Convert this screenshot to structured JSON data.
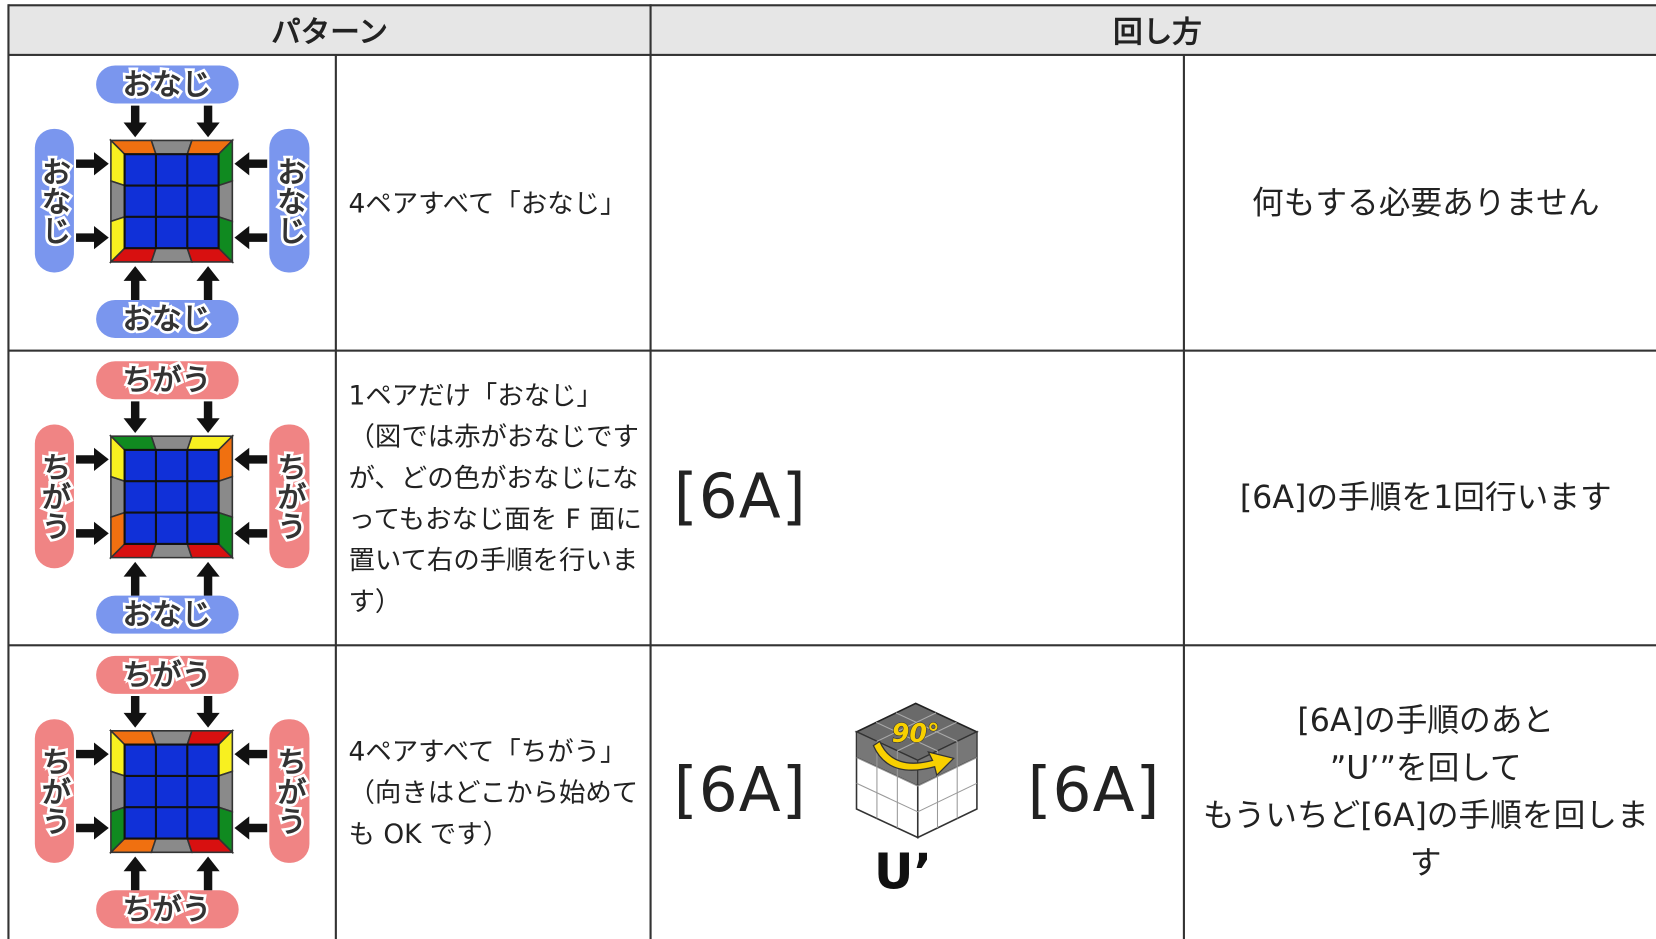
{
  "table": {
    "headers": [
      "パターン",
      "回し方"
    ],
    "rows": [
      {
        "pattern": {
          "top": "おなじ",
          "left": "おなじ",
          "right": "おなじ",
          "bottom": "おなじ"
        },
        "description": [
          "4ペアすべて「おなじ」"
        ],
        "instruction": [
          "何もする必要ありません"
        ]
      },
      {
        "pattern": {
          "top": "ちがう",
          "left": "ちがう",
          "right": "ちがう",
          "bottom": "おなじ"
        },
        "description": [
          "1ペアだけ「おなじ」",
          "（図では赤がおなじですが、どの色がおなじになってもおなじ面を F 面に置いて右の手順を行います）"
        ],
        "moves": [
          {
            "label": "[6A]"
          }
        ],
        "instruction": [
          "[6A]の手順を1回行います"
        ]
      },
      {
        "pattern": {
          "top": "ちがう",
          "left": "ちがう",
          "right": "ちがう",
          "bottom": "ちがう"
        },
        "description": [
          "4ペアすべて「ちがう」",
          "（向きはどこから始めても OK です）"
        ],
        "moves": [
          {
            "label": "[6A]"
          },
          {
            "label": "U’",
            "icon_text": "90°"
          },
          {
            "label": "[6A]"
          }
        ],
        "instruction": [
          "[6A]の手順のあと",
          "”U’”を回して",
          "もういちど[6A]の手順を回します"
        ]
      }
    ]
  }
}
